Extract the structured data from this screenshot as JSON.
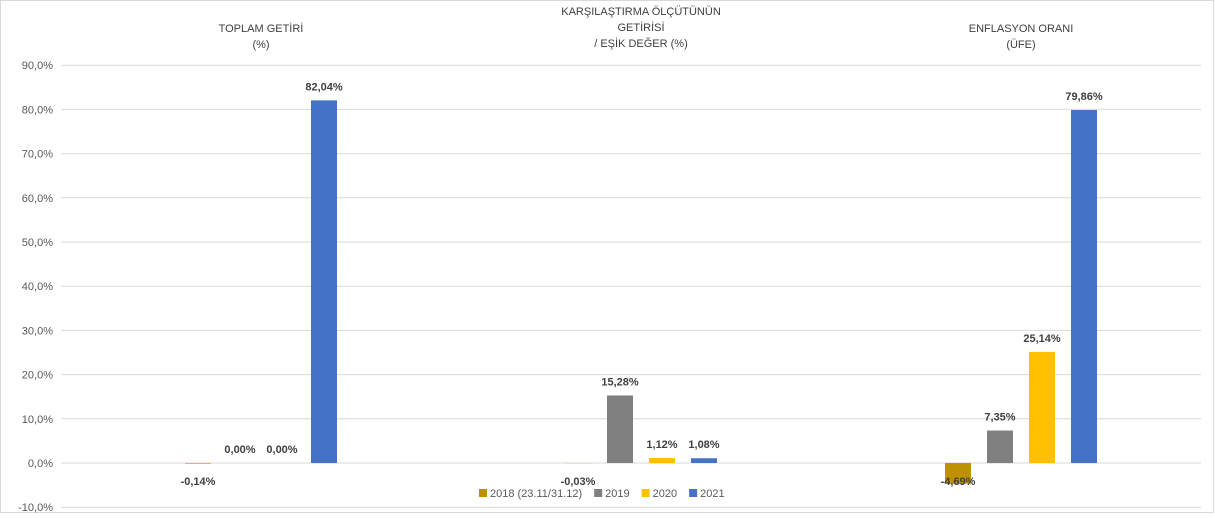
{
  "chart_data": {
    "type": "bar",
    "categories": [
      [
        "TOPLAM GETİRİ",
        "(%)"
      ],
      [
        "KARŞILAŞTIRMA ÖLÇÜTÜNÜN",
        "GETİRİSİ",
        "/ EŞİK DEĞER (%)"
      ],
      [
        "ENFLASYON ORANI",
        "(ÜFE)"
      ]
    ],
    "series": [
      {
        "name": "2018 (23.11/31.12)",
        "color": "#bf9000",
        "values": [
          -0.14,
          -0.03,
          -4.69
        ],
        "labels": [
          "-0,14%",
          "-0,03%",
          "-4,69%"
        ]
      },
      {
        "name": "2019",
        "color": "#808080",
        "values": [
          0.0,
          15.28,
          7.35
        ],
        "labels": [
          "0,00%",
          "15,28%",
          "7,35%"
        ]
      },
      {
        "name": "2020",
        "color": "#ffc000",
        "values": [
          0.0,
          1.12,
          25.14
        ],
        "labels": [
          "0,00%",
          "1,12%",
          "25,14%"
        ]
      },
      {
        "name": "2021",
        "color": "#4472c4",
        "values": [
          82.04,
          1.08,
          79.86
        ],
        "labels": [
          "82,04%",
          "1,08%",
          "79,86%"
        ]
      }
    ],
    "yticks": [
      -10,
      0,
      10,
      20,
      30,
      40,
      50,
      60,
      70,
      80,
      90
    ],
    "ytick_labels": [
      "-10,0%",
      "0,0%",
      "10,0%",
      "20,0%",
      "30,0%",
      "40,0%",
      "50,0%",
      "60,0%",
      "70,0%",
      "80,0%",
      "90,0%"
    ],
    "ylim": [
      -10,
      90
    ],
    "grid": true,
    "legend_position": "bottom-center"
  }
}
